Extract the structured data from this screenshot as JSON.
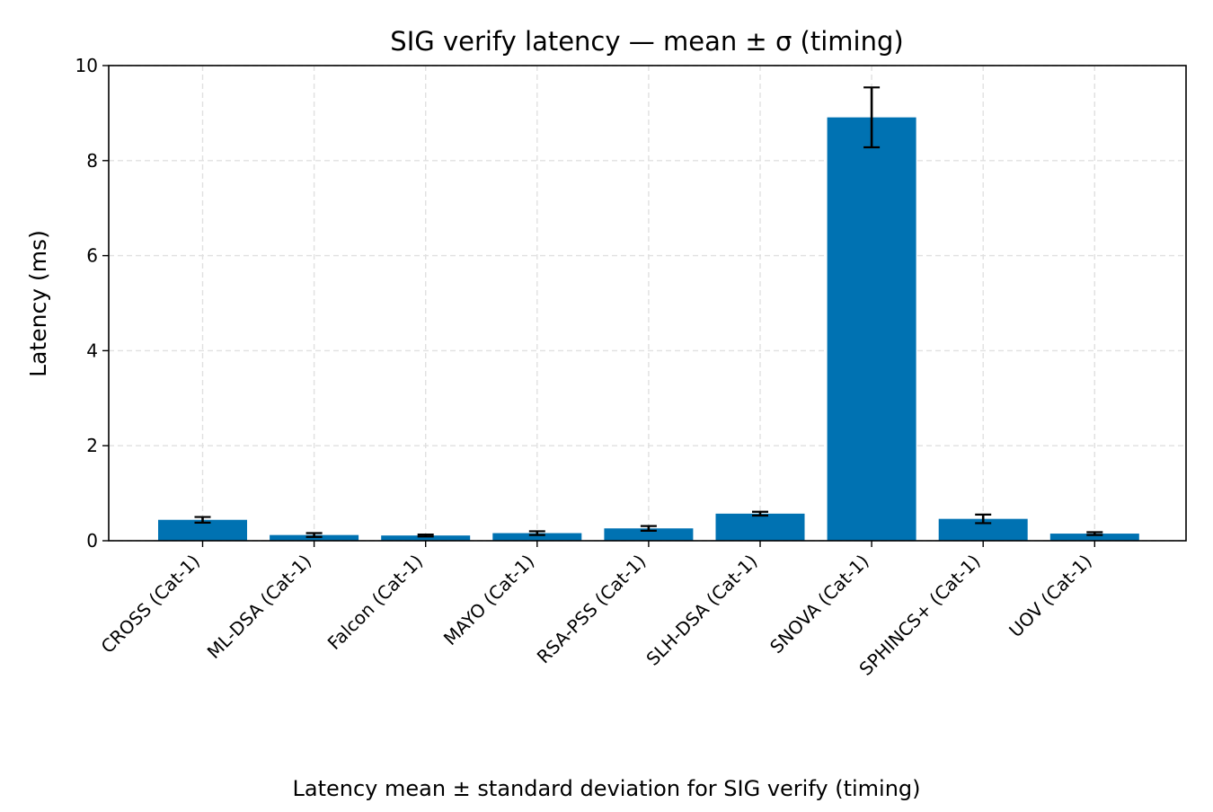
{
  "chart_data": {
    "type": "bar",
    "title": "SIG verify latency — mean ± σ (timing)",
    "xlabel": "",
    "ylabel": "Latency (ms)",
    "caption": "Latency mean ± standard deviation for SIG verify (timing)",
    "categories": [
      "CROSS (Cat-1)",
      "ML-DSA (Cat-1)",
      "Falcon (Cat-1)",
      "MAYO (Cat-1)",
      "RSA-PSS (Cat-1)",
      "SLH-DSA (Cat-1)",
      "SNOVA (Cat-1)",
      "SPHINCS+ (Cat-1)",
      "UOV (Cat-1)"
    ],
    "values": [
      0.44,
      0.12,
      0.11,
      0.16,
      0.26,
      0.57,
      8.91,
      0.46,
      0.15
    ],
    "errors": [
      0.06,
      0.04,
      0.02,
      0.04,
      0.05,
      0.04,
      0.63,
      0.09,
      0.03
    ],
    "ylim": [
      0,
      10
    ],
    "yticks": [
      "0",
      "2",
      "4",
      "6",
      "8",
      "10"
    ],
    "grid": true,
    "bar_color": "#0072b2",
    "error_color": "#000000"
  }
}
